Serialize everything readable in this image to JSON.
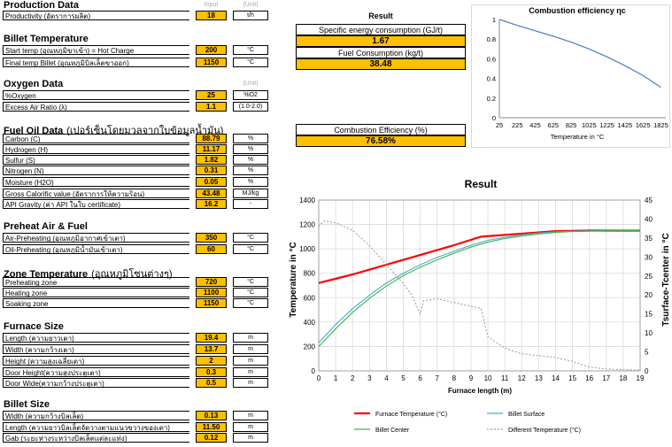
{
  "sections": {
    "production": {
      "title": "Production Data",
      "col_input": "Input",
      "col_unit": "(Unit)",
      "rows": [
        {
          "label": "Productivity (อัตราการผลิต)",
          "value": "18",
          "unit": "t/h"
        }
      ]
    },
    "billet_temp": {
      "title": "Billet Temperature",
      "rows": [
        {
          "label": "Start temp (อุณหภูมิขาเข้า) = Hot Charge",
          "value": "200",
          "unit": "°C"
        },
        {
          "label": "Final temp Billet (อุณหภูมิบิลเล็ตขาออก)",
          "value": "1150",
          "unit": "°C"
        }
      ]
    },
    "oxygen": {
      "title": "Oxygen Data",
      "col_unit": "(Unit)",
      "rows": [
        {
          "label": "%Oxygen",
          "value": "25",
          "unit": "%O2"
        },
        {
          "label": "Excess Air Ratio (λ)",
          "value": "1.1",
          "unit": "(1.0-2.0)"
        }
      ]
    },
    "fuel_oil": {
      "title": "Fuel Oil Data",
      "title_note": "(เปอร์เซ็นโดยมวลจากใบข้อมูลน้ำมัน)",
      "rows": [
        {
          "label": "Carbon (C)",
          "value": "88.79",
          "unit": "%"
        },
        {
          "label": "Hydrogen (H)",
          "value": "11.17",
          "unit": "%"
        },
        {
          "label": "Sulfur (S)",
          "value": "1.82",
          "unit": "%"
        },
        {
          "label": "Nitrogen (N)",
          "value": "0.31",
          "unit": "%"
        },
        {
          "label": "Moisture (H2O)",
          "value": "0.05",
          "unit": "%"
        },
        {
          "label": "Gross Calorific value (อัตราการให้ความร้อน)",
          "value": "43.48",
          "unit": "MJ/kg"
        },
        {
          "label": "API Gravity (ค่า API ในใบ certificate)",
          "value": "16.2",
          "unit": "-"
        }
      ]
    },
    "preheat": {
      "title": "Preheat Air & Fuel",
      "rows": [
        {
          "label": "Air-Preheating (อุณหภูมิอากาศเข้าเตา)",
          "value": "350",
          "unit": "°C"
        },
        {
          "label": "Oil-Preheating (อุณหภูมิน้ำมันเข้าเตา)",
          "value": "60",
          "unit": "°C"
        }
      ]
    },
    "zone_temp": {
      "title": "Zone Temperature",
      "title_note": "(อุณหภูมิโซนต่างๆ)",
      "rows": [
        {
          "label": "Preheating zone",
          "value": "720",
          "unit": "°C"
        },
        {
          "label": "Heating zone",
          "value": "1100",
          "unit": "°C"
        },
        {
          "label": "Soaking zone",
          "value": "1150",
          "unit": "°C"
        }
      ]
    },
    "furnace_size": {
      "title": "Furnace Size",
      "rows": [
        {
          "label": "Length (ความยาวเตา)",
          "value": "19.4",
          "unit": "m"
        },
        {
          "label": "Width (ความกว้างเตา)",
          "value": "13.7",
          "unit": "m"
        },
        {
          "label": "Height (ความสูงเฉลี่ยเตา)",
          "value": "2",
          "unit": "m"
        },
        {
          "label": "Door Height(ความสูงประตูเตา)",
          "value": "0.3",
          "unit": "m"
        },
        {
          "label": "Door Wide(ความกว้างประตูเตา)",
          "value": "0.5",
          "unit": "m"
        }
      ]
    },
    "billet_size": {
      "title": "Billet Size",
      "rows": [
        {
          "label": "Width (ความกว้างบิลเล็ต)",
          "value": "0.13",
          "unit": "m"
        },
        {
          "label": "Length (ความยาวบิลเล็ตจัดวางตามแนวขวางของเตา)",
          "value": "11.50",
          "unit": "m"
        },
        {
          "label": "Gab (ระยะห่างระหว่างบิลเล็ตแต่ละแท่ง)",
          "value": "0.12",
          "unit": "m"
        }
      ]
    }
  },
  "result_panel": {
    "title": "Result",
    "sec_label": "Specific energy consumption (GJ/t)",
    "sec_value": "1.67",
    "fuel_label": "Fuel Consumption (kg/t)",
    "fuel_value": "38.48",
    "eff_label": "Combustion Efficiency (%)",
    "eff_value": "76.58%"
  },
  "chart_data": [
    {
      "type": "line",
      "title": "Combustion efficiency ηc",
      "xlabel": "Temperature in °C",
      "ylabel": "",
      "x": [
        25,
        225,
        425,
        625,
        825,
        1025,
        1225,
        1425,
        1625,
        1825
      ],
      "xlim": [
        25,
        1880
      ],
      "ylim": [
        0,
        1
      ],
      "yticks": [
        "0",
        "0.2",
        "0.4",
        "0.6",
        "0.8",
        "1"
      ],
      "grid": false,
      "series": [
        {
          "values": [
            1.0,
            0.94,
            0.885,
            0.83,
            0.77,
            0.7,
            0.62,
            0.53,
            0.43,
            0.31
          ],
          "color": "#4a7ebb"
        }
      ]
    },
    {
      "type": "line",
      "title": "Result",
      "xlabel": "Furnace length (m)",
      "ylabel_left": "Temperature in °C",
      "ylabel_right": "Tsurface-Tcenter in °C",
      "xlim": [
        0,
        19
      ],
      "ylim_left": [
        0,
        1400
      ],
      "ylim_right": [
        0,
        45
      ],
      "xticks": [
        "0",
        "1",
        "2",
        "3",
        "4",
        "5",
        "6",
        "7",
        "8",
        "9",
        "10",
        "11",
        "12",
        "13",
        "14",
        "15",
        "16",
        "17",
        "18",
        "19"
      ],
      "yticks_left": [
        "0",
        "200",
        "400",
        "600",
        "800",
        "1000",
        "1200",
        "1400"
      ],
      "yticks_right": [
        "0",
        "5",
        "10",
        "15",
        "20",
        "25",
        "30",
        "35",
        "40",
        "45"
      ],
      "grid": true,
      "legend_position": "bottom",
      "series": [
        {
          "name": "Furnace Temperature (°C)",
          "axis": "left",
          "color": "#ff0000",
          "x": [
            0,
            2,
            4,
            6,
            8,
            9.6,
            12,
            14,
            16,
            19
          ],
          "values": [
            720,
            790,
            870,
            950,
            1030,
            1100,
            1125,
            1145,
            1150,
            1150
          ]
        },
        {
          "name": "Billet Surface",
          "axis": "left",
          "color": "#4bacc6",
          "x": [
            0,
            1,
            2,
            3,
            4,
            5,
            6,
            7,
            8,
            9,
            10,
            11,
            12,
            13,
            14,
            15,
            16,
            17,
            18,
            19
          ],
          "values": [
            230,
            380,
            510,
            620,
            720,
            800,
            870,
            930,
            980,
            1030,
            1070,
            1095,
            1115,
            1130,
            1140,
            1145,
            1148,
            1150,
            1150,
            1150
          ]
        },
        {
          "name": "Billet Center",
          "axis": "left",
          "color": "#3cb44b",
          "x": [
            0,
            1,
            2,
            3,
            4,
            5,
            6,
            7,
            8,
            9,
            10,
            11,
            12,
            13,
            14,
            15,
            16,
            17,
            18,
            19
          ],
          "values": [
            200,
            345,
            480,
            595,
            695,
            780,
            850,
            910,
            965,
            1015,
            1055,
            1085,
            1105,
            1122,
            1135,
            1142,
            1146,
            1149,
            1150,
            1150
          ]
        },
        {
          "name": "Different Temperature (°C)",
          "axis": "right",
          "color": "#a0a0a0",
          "dash": true,
          "x": [
            0,
            0.3,
            1,
            2,
            3,
            4,
            5,
            5.5,
            6,
            6.2,
            7,
            8,
            9,
            9.6,
            10,
            11,
            12,
            13,
            14,
            15,
            16,
            17,
            18,
            19
          ],
          "values": [
            38,
            39.5,
            39,
            37,
            33,
            28,
            23,
            20,
            15,
            18.5,
            19,
            18,
            17,
            16.5,
            9,
            6,
            4.5,
            4,
            3.5,
            2.5,
            1,
            0.5,
            0.3,
            0.2
          ]
        }
      ]
    }
  ]
}
